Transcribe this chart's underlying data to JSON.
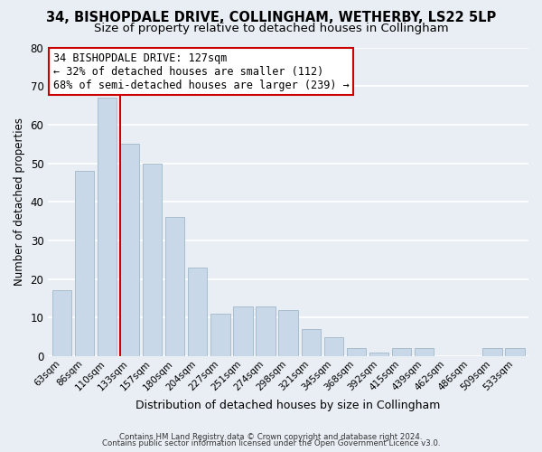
{
  "title": "34, BISHOPDALE DRIVE, COLLINGHAM, WETHERBY, LS22 5LP",
  "subtitle": "Size of property relative to detached houses in Collingham",
  "xlabel": "Distribution of detached houses by size in Collingham",
  "ylabel": "Number of detached properties",
  "footer_line1": "Contains HM Land Registry data © Crown copyright and database right 2024.",
  "footer_line2": "Contains public sector information licensed under the Open Government Licence v3.0.",
  "bar_labels": [
    "63sqm",
    "86sqm",
    "110sqm",
    "133sqm",
    "157sqm",
    "180sqm",
    "204sqm",
    "227sqm",
    "251sqm",
    "274sqm",
    "298sqm",
    "321sqm",
    "345sqm",
    "368sqm",
    "392sqm",
    "415sqm",
    "439sqm",
    "462sqm",
    "486sqm",
    "509sqm",
    "533sqm"
  ],
  "bar_values": [
    17,
    48,
    67,
    55,
    50,
    36,
    23,
    11,
    13,
    13,
    12,
    7,
    5,
    2,
    1,
    2,
    2,
    0,
    0,
    2,
    2
  ],
  "bar_color": "#c8d8e8",
  "bar_edge_color": "#a8bece",
  "property_label": "34 BISHOPDALE DRIVE: 127sqm",
  "annotation_line1": "← 32% of detached houses are smaller (112)",
  "annotation_line2": "68% of semi-detached houses are larger (239) →",
  "vline_color": "#cc0000",
  "annotation_box_color": "#ffffff",
  "annotation_box_edge": "#cc0000",
  "ylim": [
    0,
    80
  ],
  "yticks": [
    0,
    10,
    20,
    30,
    40,
    50,
    60,
    70,
    80
  ],
  "background_color": "#e8eef4",
  "grid_color": "#ffffff",
  "title_fontsize": 10.5,
  "subtitle_fontsize": 9.5
}
